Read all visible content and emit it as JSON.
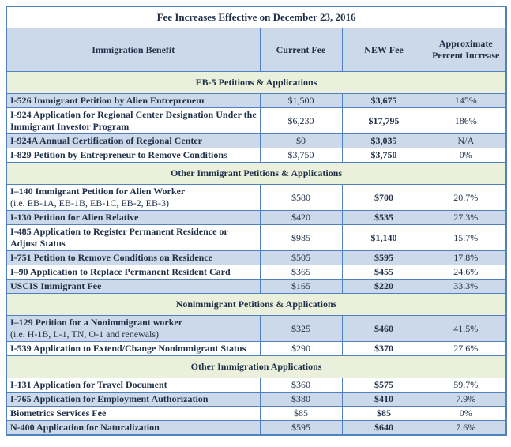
{
  "title": "Fee Increases Effective on December 23, 2016",
  "columns": [
    "Immigration Benefit",
    "Current Fee",
    "NEW Fee",
    "Approximate Percent Increase"
  ],
  "colors": {
    "border_blue": "#4f81bd",
    "shaded_row_blue": "#ccd9ea",
    "section_band_green": "#eaf0dc",
    "text": "#1f3048"
  },
  "sections": [
    {
      "header": "EB-5 Petitions & Applications",
      "rows": [
        {
          "name": "I-526 Immigrant Petition by Alien Entrepreneur",
          "current": "$1,500",
          "new": "$3,675",
          "pct": "145%",
          "shaded": true
        },
        {
          "name": "I-924 Application for Regional Center Designation Under the Immigrant Investor Program",
          "current": "$6,230",
          "new": "$17,795",
          "pct": "186%",
          "shaded": false
        },
        {
          "name": "I-924A Annual Certification of Regional Center",
          "current": "$0",
          "new": "$3,035",
          "pct": "N/A",
          "shaded": true
        },
        {
          "name": "I-829 Petition by Entrepreneur to Remove Conditions",
          "current": "$3,750",
          "new": "$3,750",
          "pct": "0%",
          "shaded": false
        }
      ]
    },
    {
      "header": "Other Immigrant Petitions & Applications",
      "rows": [
        {
          "name": "I–140 Immigrant Petition for Alien Worker",
          "subtext": "(i.e. EB-1A, EB-1B, EB-1C, EB-2, EB-3)",
          "current": "$580",
          "new": "$700",
          "pct": "20.7%",
          "shaded": false
        },
        {
          "name": "I-130 Petition for Alien Relative",
          "current": "$420",
          "new": "$535",
          "pct": "27.3%",
          "shaded": true
        },
        {
          "name": "I-485 Application to Register Permanent Residence or Adjust Status",
          "current": "$985",
          "new": "$1,140",
          "pct": "15.7%",
          "shaded": false
        },
        {
          "name": "I-751 Petition to Remove Conditions on Residence",
          "current": "$505",
          "new": "$595",
          "pct": "17.8%",
          "shaded": true
        },
        {
          "name": "I–90 Application to Replace Permanent Resident Card",
          "current": "$365",
          "new": "$455",
          "pct": "24.6%",
          "shaded": false
        },
        {
          "name": "USCIS Immigrant Fee",
          "current": "$165",
          "new": "$220",
          "pct": "33.3%",
          "shaded": true
        }
      ]
    },
    {
      "header": "Nonimmigrant Petitions & Applications",
      "rows": [
        {
          "name": "I–129 Petition for a Nonimmigrant worker",
          "subtext": "(i.e. H-1B, L-1, TN, O-1 and renewals)",
          "current": "$325",
          "new": "$460",
          "pct": "41.5%",
          "shaded": true
        },
        {
          "name": "I-539 Application to Extend/Change Nonimmigrant Status",
          "current": "$290",
          "new": "$370",
          "pct": "27.6%",
          "shaded": false
        }
      ]
    },
    {
      "header": "Other Immigration Applications",
      "rows": [
        {
          "name": "I-131 Application for Travel Document",
          "current": "$360",
          "new": "$575",
          "pct": "59.7%",
          "shaded": false
        },
        {
          "name": "I-765 Application for Employment Authorization",
          "current": "$380",
          "new": "$410",
          "pct": "7.9%",
          "shaded": true
        },
        {
          "name": "Biometrics Services Fee",
          "current": "$85",
          "new": "$85",
          "pct": "0%",
          "shaded": false
        },
        {
          "name": "N-400 Application for Naturalization",
          "current": "$595",
          "new": "$640",
          "pct": "7.6%",
          "shaded": true
        }
      ]
    }
  ]
}
